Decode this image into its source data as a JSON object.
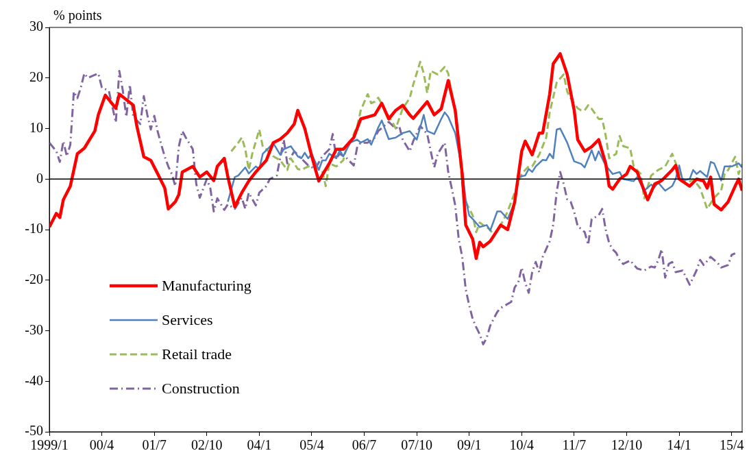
{
  "chart_data": {
    "type": "line",
    "ylabel": "% points",
    "xlim": [
      "1999-01",
      "2015-07"
    ],
    "xticks": [
      {
        "value": "1999-01",
        "label": "1999/1"
      },
      {
        "value": "2000-04",
        "label": "00/4"
      },
      {
        "value": "2001-07",
        "label": "01/7"
      },
      {
        "value": "2002-10",
        "label": "02/10"
      },
      {
        "value": "2004-01",
        "label": "04/1"
      },
      {
        "value": "2005-04",
        "label": "05/4"
      },
      {
        "value": "2006-07",
        "label": "06/7"
      },
      {
        "value": "2007-10",
        "label": "07/10"
      },
      {
        "value": "2009-01",
        "label": "09/1"
      },
      {
        "value": "2010-04",
        "label": "10/4"
      },
      {
        "value": "2011-07",
        "label": "11/7"
      },
      {
        "value": "2012-10",
        "label": "12/10"
      },
      {
        "value": "2014-01",
        "label": "14/1"
      },
      {
        "value": "2015-04",
        "label": "15/4"
      }
    ],
    "ylim": [
      -50,
      30
    ],
    "yticks": [
      -50,
      -40,
      -30,
      -20,
      -10,
      0,
      10,
      20,
      30
    ],
    "grid": false,
    "legend": "bottom left",
    "marker": "none",
    "ref_lines": [
      {
        "axis": "y",
        "value": 0,
        "color": "#000000"
      }
    ],
    "series": [
      {
        "name": "Manufacturing",
        "color": "#ff0000",
        "line_style": "solid",
        "x": [
          "1999-01",
          "1999-03",
          "1999-04",
          "1999-05",
          "1999-07",
          "1999-08",
          "1999-09",
          "1999-11",
          "2000-02",
          "2000-03",
          "2000-05",
          "2000-08",
          "2000-09",
          "2001-01",
          "2001-02",
          "2001-04",
          "2001-06",
          "2001-08",
          "2001-10",
          "2001-11",
          "2002-01",
          "2002-02",
          "2002-03",
          "2002-06",
          "2002-08",
          "2002-10",
          "2002-12",
          "2003-01",
          "2003-03",
          "2003-04",
          "2003-06",
          "2003-08",
          "2003-10",
          "2003-12",
          "2004-03",
          "2004-05",
          "2004-07",
          "2004-09",
          "2004-11",
          "2004-12",
          "2005-02",
          "2005-04",
          "2005-06",
          "2005-09",
          "2005-11",
          "2006-01",
          "2006-04",
          "2006-06",
          "2006-08",
          "2006-10",
          "2006-12",
          "2007-02",
          "2007-04",
          "2007-06",
          "2007-08",
          "2007-09",
          "2008-01",
          "2008-03",
          "2008-05",
          "2008-07",
          "2008-09",
          "2008-11",
          "2008-12",
          "2009-02",
          "2009-03",
          "2009-04",
          "2009-05",
          "2009-07",
          "2009-10",
          "2009-12",
          "2010-02",
          "2010-04",
          "2010-05",
          "2010-07",
          "2010-09",
          "2010-10",
          "2010-12",
          "2011-01",
          "2011-03",
          "2011-05",
          "2011-07",
          "2011-08",
          "2011-10",
          "2011-12",
          "2012-02",
          "2012-04",
          "2012-05",
          "2012-06",
          "2012-08",
          "2012-10",
          "2012-11",
          "2013-01",
          "2013-03",
          "2013-04",
          "2013-06",
          "2013-08",
          "2013-11",
          "2013-12",
          "2014-01",
          "2014-04",
          "2014-06",
          "2014-08",
          "2014-09",
          "2014-10",
          "2014-11",
          "2015-01",
          "2015-03",
          "2015-05",
          "2015-06",
          "2015-07"
        ],
        "values": [
          -9.5,
          -6.8,
          -7.6,
          -4.1,
          -1.4,
          1.8,
          5,
          6.1,
          9.5,
          12.7,
          16.6,
          14,
          16.8,
          14.6,
          10.5,
          4.4,
          3.7,
          1,
          -1.8,
          -5.9,
          -4.5,
          -3.1,
          1.4,
          2.5,
          0.4,
          1.4,
          -0.3,
          2.5,
          4.1,
          0.5,
          -5.5,
          -2.7,
          -0.4,
          1.4,
          3.7,
          7.2,
          7.9,
          9.1,
          10.9,
          13.6,
          10,
          4.5,
          -0.4,
          3.1,
          5.9,
          5.9,
          8.2,
          11.9,
          12.3,
          12.7,
          15,
          11.9,
          13.6,
          14.6,
          12.7,
          12,
          15.3,
          12.7,
          13.9,
          19.5,
          13.6,
          1,
          -9.1,
          -11.9,
          -15.7,
          -12.5,
          -13.4,
          -12.3,
          -9.1,
          -10,
          -4.5,
          5.5,
          7.5,
          4.8,
          9.1,
          9.1,
          16.8,
          22.8,
          24.8,
          20.7,
          13.6,
          7.8,
          5.5,
          6.4,
          7.8,
          3.1,
          -1.4,
          -2,
          0,
          1,
          2.5,
          1.4,
          -2.3,
          -4.1,
          -1,
          -0.3,
          1.8,
          2.7,
          0,
          -1.4,
          0,
          -0.4,
          -1.8,
          0.4,
          -5,
          -6.1,
          -4.5,
          -1.4,
          0,
          -2.3
        ]
      },
      {
        "name": "Services",
        "color": "#4f81bd",
        "line_style": "solid",
        "x": [
          "2003-04",
          "2003-06",
          "2003-07",
          "2003-09",
          "2003-10",
          "2003-12",
          "2004-01",
          "2004-02",
          "2004-04",
          "2004-05",
          "2004-07",
          "2004-08",
          "2004-10",
          "2004-12",
          "2005-01",
          "2005-02",
          "2005-03",
          "2005-04",
          "2005-06",
          "2005-07",
          "2005-08",
          "2005-09",
          "2005-11",
          "2005-12",
          "2006-01",
          "2006-03",
          "2006-05",
          "2006-06",
          "2006-08",
          "2006-09",
          "2006-11",
          "2006-12",
          "2007-02",
          "2007-04",
          "2007-06",
          "2007-08",
          "2007-10",
          "2007-12",
          "2008-01",
          "2008-03",
          "2008-05",
          "2008-06",
          "2008-07",
          "2008-09",
          "2008-11",
          "2008-12",
          "2009-01",
          "2009-02",
          "2009-04",
          "2009-06",
          "2009-07",
          "2009-09",
          "2009-10",
          "2009-12",
          "2010-02",
          "2010-03",
          "2010-05",
          "2010-06",
          "2010-07",
          "2010-08",
          "2010-10",
          "2010-11",
          "2010-12",
          "2011-01",
          "2011-02",
          "2011-03",
          "2011-05",
          "2011-07",
          "2011-09",
          "2011-10",
          "2011-12",
          "2012-01",
          "2012-02",
          "2012-04",
          "2012-06",
          "2012-08",
          "2012-09",
          "2012-12",
          "2013-01",
          "2013-03",
          "2013-05",
          "2013-06",
          "2013-07",
          "2013-09",
          "2013-11",
          "2013-12",
          "2014-01",
          "2014-02",
          "2014-04",
          "2014-05",
          "2014-06",
          "2014-07",
          "2014-09",
          "2014-10",
          "2014-11",
          "2015-01",
          "2015-02",
          "2015-04",
          "2015-06",
          "2015-07"
        ],
        "values": [
          -4.5,
          0.4,
          0.7,
          2.3,
          1.1,
          2.5,
          2,
          5,
          6.4,
          7.1,
          4.8,
          5.9,
          6.5,
          4.5,
          4.1,
          5.2,
          4.1,
          5,
          1.8,
          3.7,
          3.7,
          5,
          4.1,
          5.7,
          4.5,
          7.2,
          7.8,
          7.2,
          7.9,
          6.8,
          10.2,
          11.6,
          7.9,
          8.2,
          9.1,
          9.5,
          7.8,
          12.7,
          9.5,
          8.9,
          11.9,
          13.2,
          12.3,
          9.1,
          1.8,
          -4.1,
          -7.2,
          -7.9,
          -9.5,
          -9.1,
          -10.2,
          -6.4,
          -6.4,
          -7.9,
          -4.5,
          0.4,
          0.7,
          2,
          1.4,
          2.5,
          3.8,
          3.7,
          5,
          4.1,
          9.8,
          10,
          7.2,
          3.5,
          3,
          2.3,
          5.7,
          3.7,
          5.5,
          2.7,
          1,
          1.4,
          0,
          -0.4,
          0.4,
          -2.3,
          -1.1,
          -1.6,
          -0.7,
          -2.3,
          -1.4,
          0,
          2.7,
          -0.3,
          0,
          1.8,
          1,
          1.6,
          0.4,
          3.4,
          3.1,
          -0.3,
          2.5,
          2.5,
          3.1,
          2.3
        ]
      },
      {
        "name": "Retail trade",
        "color": "#9bbb59",
        "line_style": "dashed",
        "x": [
          "2003-05",
          "2003-07",
          "2003-08",
          "2003-09",
          "2003-10",
          "2003-11",
          "2004-01",
          "2004-02",
          "2004-03",
          "2004-05",
          "2004-07",
          "2004-09",
          "2004-10",
          "2004-12",
          "2005-01",
          "2005-03",
          "2005-05",
          "2005-07",
          "2005-08",
          "2005-09",
          "2005-11",
          "2006-01",
          "2006-02",
          "2006-03",
          "2006-05",
          "2006-06",
          "2006-08",
          "2006-09",
          "2006-10",
          "2006-11",
          "2007-01",
          "2007-03",
          "2007-04",
          "2007-06",
          "2007-08",
          "2007-09",
          "2007-11",
          "2007-12",
          "2008-01",
          "2008-02",
          "2008-04",
          "2008-06",
          "2008-07",
          "2008-09",
          "2008-10",
          "2008-11",
          "2008-12",
          "2009-02",
          "2009-03",
          "2009-04",
          "2009-05",
          "2009-07",
          "2009-08",
          "2009-10",
          "2009-12",
          "2010-02",
          "2010-04",
          "2010-06",
          "2010-07",
          "2010-09",
          "2010-11",
          "2010-12",
          "2011-02",
          "2011-04",
          "2011-05",
          "2011-06",
          "2011-08",
          "2011-09",
          "2011-10",
          "2011-11",
          "2011-12",
          "2012-02",
          "2012-03",
          "2012-04",
          "2012-05",
          "2012-07",
          "2012-08",
          "2012-09",
          "2012-11",
          "2012-12",
          "2013-02",
          "2013-03",
          "2013-05",
          "2013-07",
          "2013-09",
          "2013-11",
          "2014-01",
          "2014-03",
          "2014-05",
          "2014-07",
          "2014-09",
          "2014-11",
          "2015-01",
          "2015-02",
          "2015-03",
          "2015-05",
          "2015-06",
          "2015-07"
        ],
        "values": [
          5.5,
          7.2,
          8.2,
          5.9,
          1.8,
          5,
          9.8,
          6.4,
          5.9,
          4.5,
          3.7,
          1.8,
          4.1,
          2,
          1.8,
          2.5,
          2.3,
          1.6,
          -1.4,
          3.1,
          2.5,
          3.7,
          6.4,
          7.2,
          10.5,
          13.6,
          16.8,
          15,
          15.3,
          16.1,
          13.6,
          11.3,
          10,
          14,
          16,
          18.7,
          23.2,
          20.9,
          17,
          21.4,
          20.7,
          22.2,
          20.9,
          13.2,
          6.8,
          -1,
          -4.5,
          -7.2,
          -10.5,
          -8.6,
          -9.1,
          -10,
          -11.2,
          -9.1,
          -6.4,
          -2.7,
          1.1,
          2.5,
          2.5,
          4.8,
          8.2,
          13.2,
          19.1,
          20.7,
          17.3,
          16,
          14,
          13.6,
          13.6,
          14.6,
          13.9,
          11.9,
          11.9,
          8.6,
          4.1,
          5,
          8.5,
          6.5,
          6.1,
          2.5,
          1,
          -3.8,
          0.7,
          1.8,
          2.5,
          5,
          1.4,
          -1,
          0,
          -1.8,
          -5.9,
          -3.7,
          -2.3,
          1,
          1.8,
          4.4,
          1,
          3
        ]
      },
      {
        "name": "Construction",
        "color": "#8064a2",
        "line_style": "dashdot",
        "x": [
          "1999-01",
          "1999-03",
          "1999-04",
          "1999-05",
          "1999-06",
          "1999-07",
          "1999-08",
          "1999-09",
          "1999-10",
          "1999-11",
          "1999-12",
          "2000-03",
          "2000-04",
          "2000-06",
          "2000-08",
          "2000-09",
          "2000-10",
          "2000-11",
          "2000-12",
          "2001-01",
          "2001-03",
          "2001-04",
          "2001-05",
          "2001-06",
          "2001-07",
          "2001-08",
          "2001-09",
          "2001-10",
          "2001-11",
          "2001-12",
          "2002-01",
          "2002-02",
          "2002-03",
          "2002-04",
          "2002-06",
          "2002-07",
          "2002-08",
          "2002-10",
          "2002-11",
          "2002-12",
          "2003-01",
          "2003-03",
          "2003-04",
          "2003-06",
          "2003-08",
          "2003-09",
          "2003-10",
          "2003-12",
          "2004-01",
          "2004-03",
          "2004-04",
          "2004-06",
          "2004-08",
          "2004-09",
          "2004-11",
          "2005-01",
          "2005-03",
          "2005-05",
          "2005-07",
          "2005-09",
          "2005-10",
          "2005-11",
          "2005-12",
          "2006-02",
          "2006-04",
          "2006-05",
          "2006-06",
          "2006-08",
          "2006-10",
          "2006-11",
          "2007-02",
          "2007-04",
          "2007-05",
          "2007-06",
          "2007-08",
          "2007-09",
          "2007-11",
          "2008-01",
          "2008-02",
          "2008-03",
          "2008-04",
          "2008-06",
          "2008-07",
          "2008-08",
          "2008-09",
          "2008-10",
          "2008-11",
          "2008-12",
          "2009-01",
          "2009-02",
          "2009-03",
          "2009-04",
          "2009-05",
          "2009-06",
          "2009-07",
          "2009-09",
          "2009-10",
          "2010-01",
          "2010-02",
          "2010-03",
          "2010-04",
          "2010-05",
          "2010-06",
          "2010-07",
          "2010-08",
          "2010-09",
          "2010-10",
          "2010-12",
          "2011-01",
          "2011-02",
          "2011-03",
          "2011-04",
          "2011-05",
          "2011-06",
          "2011-07",
          "2011-08",
          "2011-10",
          "2011-11",
          "2011-12",
          "2012-02",
          "2012-03",
          "2012-04",
          "2012-05",
          "2012-06",
          "2012-07",
          "2012-08",
          "2012-09",
          "2012-11",
          "2013-01",
          "2013-03",
          "2013-05",
          "2013-06",
          "2013-07",
          "2013-08",
          "2013-09",
          "2013-10",
          "2013-11",
          "2013-12",
          "2014-02",
          "2014-04",
          "2014-05",
          "2014-06",
          "2014-07",
          "2014-08",
          "2014-10",
          "2014-12",
          "2015-01",
          "2015-03",
          "2015-04",
          "2015-05"
        ],
        "values": [
          7.2,
          5.5,
          3.4,
          7.5,
          4.5,
          6.8,
          17.3,
          16,
          18.1,
          20.9,
          20,
          20.9,
          18.1,
          17.5,
          11.2,
          21.4,
          17.5,
          12.3,
          18.7,
          12.3,
          10.9,
          16.4,
          12.7,
          9.8,
          12.5,
          9.3,
          6.8,
          4.4,
          2.5,
          1,
          -1.4,
          6.4,
          9.5,
          8.2,
          5.9,
          -1,
          -3.7,
          0,
          -1.8,
          -6.4,
          -3.8,
          -6.1,
          -5,
          -5.9,
          -3.7,
          -5.9,
          -2.7,
          -5.2,
          -2.7,
          -1.4,
          0,
          0.7,
          7.8,
          3.1,
          5.5,
          4.1,
          2.7,
          2,
          4.5,
          5.9,
          8.9,
          4.1,
          5,
          4.1,
          2.7,
          6.4,
          7.2,
          7.2,
          8.2,
          9.5,
          11.3,
          10,
          10.5,
          7.8,
          5.5,
          7.5,
          10.5,
          8.9,
          5.5,
          2.3,
          5,
          7.2,
          1.4,
          -1.8,
          -5.2,
          -11.9,
          -15.4,
          -21.8,
          -25,
          -27.7,
          -29.3,
          -30.7,
          -32.7,
          -31.4,
          -29,
          -26.3,
          -25.5,
          -24.3,
          -21.4,
          -20.5,
          -17.5,
          -20.5,
          -22.5,
          -18.4,
          -16.4,
          -18.4,
          -15.4,
          -12.3,
          -9.1,
          -2.5,
          1.4,
          -1,
          -4,
          -4.5,
          -6.5,
          -9.3,
          -10.5,
          -13,
          -7.9,
          -7.2,
          -5.9,
          -10,
          -12.7,
          -13.9,
          -14.6,
          -16.1,
          -16.8,
          -16.1,
          -17.7,
          -18.1,
          -17.3,
          -17.5,
          -16.1,
          -13.9,
          -19.5,
          -16.8,
          -16.4,
          -18.4,
          -18.1,
          -20.9,
          -19.5,
          -18,
          -16,
          -17,
          -15.4,
          -16.6,
          -17.5,
          -17,
          -15,
          -14.7
        ]
      }
    ]
  }
}
